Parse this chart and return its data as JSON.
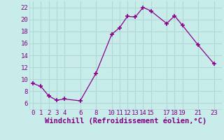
{
  "x": [
    0,
    1,
    2,
    3,
    4,
    6,
    8,
    10,
    11,
    12,
    13,
    14,
    15,
    17,
    18,
    19,
    21,
    23
  ],
  "y": [
    9.3,
    8.8,
    7.2,
    6.5,
    6.7,
    6.4,
    11.0,
    17.5,
    18.6,
    20.5,
    20.4,
    22.0,
    21.4,
    19.3,
    20.6,
    19.0,
    15.7,
    12.6
  ],
  "line_color": "#8B008B",
  "marker": "+",
  "marker_size": 4,
  "xlabel": "Windchill (Refroidissement éolien,°C)",
  "xlim": [
    -0.5,
    24.0
  ],
  "ylim": [
    5.0,
    23.0
  ],
  "yticks": [
    6,
    8,
    10,
    12,
    14,
    16,
    18,
    20,
    22
  ],
  "xticks": [
    0,
    1,
    2,
    3,
    4,
    6,
    8,
    10,
    11,
    12,
    13,
    14,
    15,
    17,
    18,
    19,
    21,
    23
  ],
  "background_color": "#c8ecea",
  "grid_color": "#b0d8d6",
  "tick_color": "#800080",
  "label_color": "#800080",
  "font_size": 6.5,
  "xlabel_font_size": 7.5
}
